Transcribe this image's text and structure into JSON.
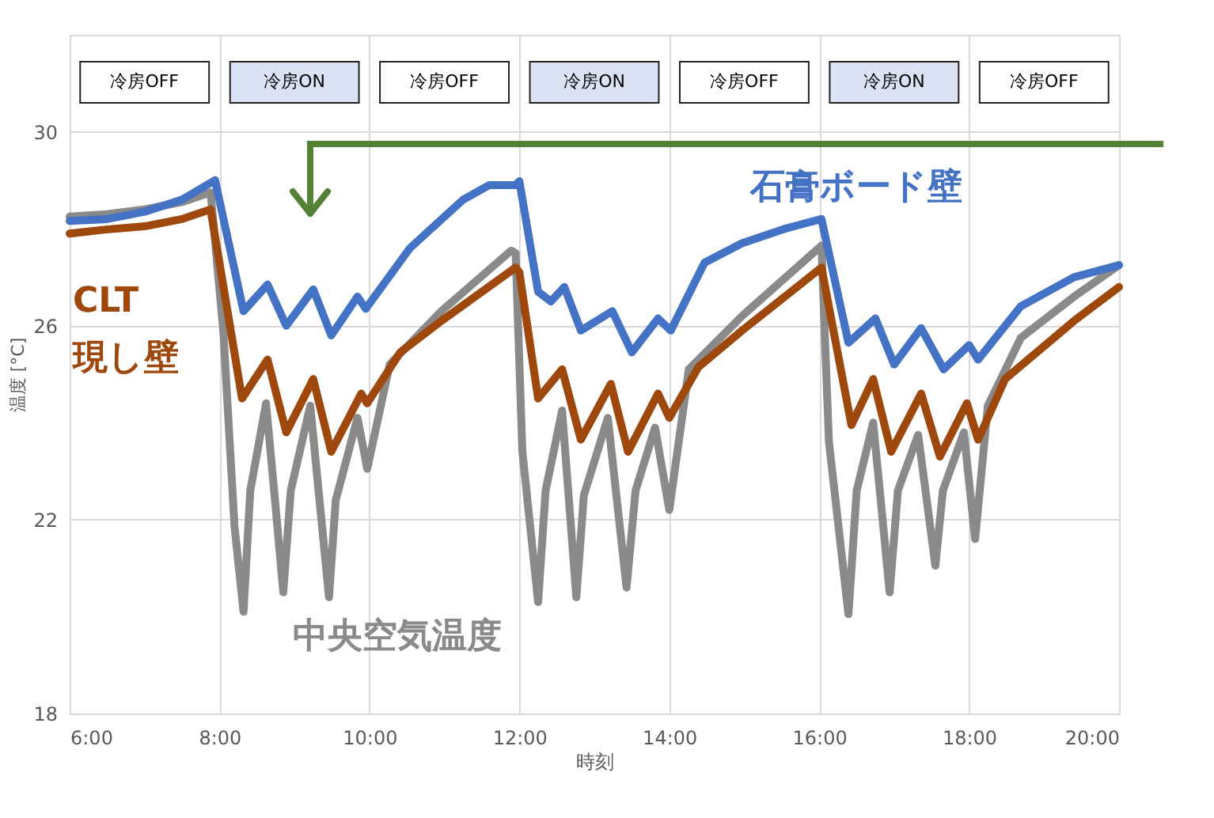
{
  "chart_data": {
    "type": "line",
    "xlabel": "時刻",
    "ylabel": "温度 [°C]",
    "xlim": [
      6,
      20
    ],
    "xticks": [
      {
        "value": 6,
        "label": "6:00"
      },
      {
        "value": 8,
        "label": "8:00"
      },
      {
        "value": 10,
        "label": "10:00"
      },
      {
        "value": 12,
        "label": "12:00"
      },
      {
        "value": 14,
        "label": "14:00"
      },
      {
        "value": 16,
        "label": "16:00"
      },
      {
        "value": 18,
        "label": "18:00"
      },
      {
        "value": 20,
        "label": "20:00"
      }
    ],
    "ylim": [
      18,
      32
    ],
    "yticks": [
      18,
      22,
      26,
      30
    ],
    "grid": true,
    "legend": false,
    "marker": "none",
    "line_style": "solid",
    "series": [
      {
        "name": "中央空気温度",
        "color": "#8a8a8a",
        "x": [
          6.0,
          6.5,
          7.0,
          7.5,
          7.88,
          8.05,
          8.2,
          8.32,
          8.41,
          8.62,
          8.74,
          8.85,
          8.95,
          9.21,
          9.46,
          9.55,
          9.84,
          9.97,
          10.27,
          10.96,
          11.89,
          11.95,
          12.04,
          12.25,
          12.35,
          12.57,
          12.76,
          12.86,
          13.18,
          13.43,
          13.55,
          13.81,
          14.0,
          14.26,
          14.97,
          16.03,
          16.13,
          16.39,
          16.5,
          16.72,
          16.94,
          17.05,
          17.32,
          17.55,
          17.65,
          17.93,
          18.08,
          18.25,
          18.69,
          19.4,
          20.0
        ],
        "values": [
          28.25,
          28.3,
          28.4,
          28.55,
          28.75,
          25.9,
          21.85,
          20.1,
          22.6,
          24.4,
          22.4,
          20.5,
          22.6,
          24.35,
          20.4,
          22.4,
          24.1,
          23.05,
          25.2,
          26.3,
          27.55,
          27.5,
          23.4,
          20.3,
          22.6,
          24.25,
          20.4,
          22.5,
          24.1,
          20.6,
          22.6,
          23.9,
          22.2,
          25.1,
          26.2,
          27.65,
          23.6,
          20.05,
          22.6,
          24.0,
          20.5,
          22.6,
          23.75,
          21.05,
          22.6,
          23.8,
          21.6,
          24.35,
          25.75,
          26.6,
          27.25
        ]
      },
      {
        "name": "CLT 現し壁",
        "color": "#9e480e",
        "x": [
          6.0,
          6.46,
          7.0,
          7.5,
          7.88,
          8.3,
          8.64,
          8.89,
          9.25,
          9.49,
          9.89,
          9.97,
          10.41,
          10.96,
          11.95,
          12.0,
          12.25,
          12.57,
          12.82,
          13.22,
          13.45,
          13.85,
          14.0,
          14.39,
          14.97,
          16.03,
          16.43,
          16.72,
          16.96,
          17.36,
          17.61,
          17.97,
          18.12,
          18.48,
          19.4,
          20.0
        ],
        "values": [
          27.9,
          27.98,
          28.05,
          28.2,
          28.4,
          24.5,
          25.3,
          23.8,
          24.9,
          23.4,
          24.6,
          24.4,
          25.45,
          26.1,
          27.2,
          27.1,
          24.5,
          25.1,
          23.65,
          24.8,
          23.4,
          24.6,
          24.1,
          25.15,
          25.9,
          27.2,
          23.95,
          24.9,
          23.4,
          24.6,
          23.3,
          24.4,
          23.65,
          24.9,
          26.1,
          26.8
        ]
      },
      {
        "name": "石膏ボード壁",
        "color": "#4472c4",
        "x": [
          6.0,
          6.5,
          7.0,
          7.5,
          7.94,
          8.32,
          8.64,
          8.89,
          9.25,
          9.49,
          9.84,
          9.95,
          10.54,
          11.25,
          11.6,
          11.95,
          12.0,
          12.25,
          12.42,
          12.6,
          12.82,
          13.24,
          13.5,
          13.85,
          14.02,
          14.47,
          14.97,
          15.54,
          16.03,
          16.39,
          16.75,
          17.0,
          17.36,
          17.66,
          18.0,
          18.12,
          18.69,
          19.4,
          20.0
        ],
        "values": [
          28.16,
          28.2,
          28.35,
          28.6,
          29.0,
          26.3,
          26.85,
          26.0,
          26.75,
          25.8,
          26.6,
          26.35,
          27.6,
          28.6,
          28.9,
          28.9,
          28.98,
          26.7,
          26.5,
          26.8,
          25.9,
          26.3,
          25.45,
          26.15,
          25.9,
          27.3,
          27.7,
          28.0,
          28.2,
          25.65,
          26.15,
          25.2,
          25.95,
          25.1,
          25.6,
          25.3,
          26.4,
          27.0,
          27.25
        ]
      }
    ],
    "annotations": [
      "冷房OFF",
      "冷房ON",
      "冷房OFF",
      "冷房ON",
      "冷房OFF",
      "冷房ON",
      "冷房OFF"
    ]
  }
}
